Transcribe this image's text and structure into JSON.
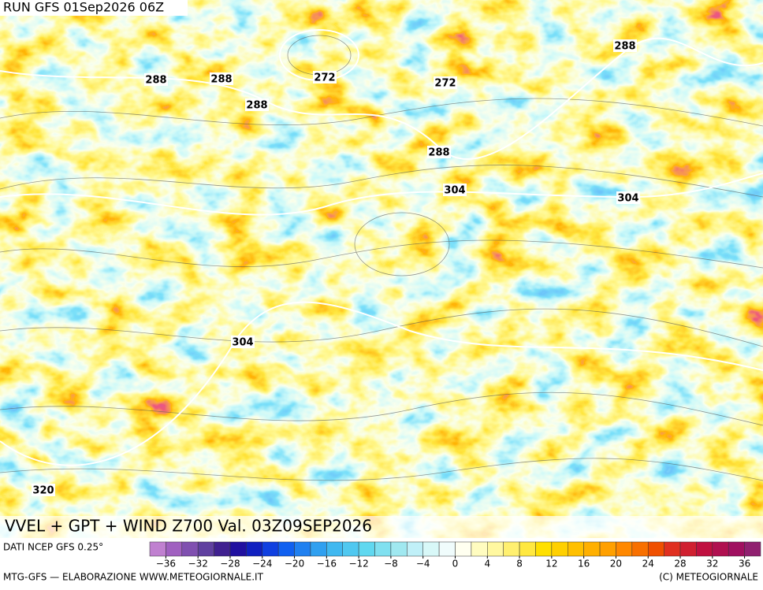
{
  "header": {
    "run": "RUN GFS 01Sep2026 06Z"
  },
  "map": {
    "title": "VVEL + GPT + WIND Z700 Val. 03Z09SEP2026",
    "contour_labels": [
      288,
      288,
      288,
      272,
      272,
      288,
      304,
      288,
      304,
      304,
      320
    ]
  },
  "footer": {
    "source": "DATI NCEP GFS 0.25°",
    "credit_left": "MTG-GFS — ELABORAZIONE WWW.METEOGIORNALE.IT",
    "credit_right": "(C) METEOGIORNALE"
  },
  "colorbar": {
    "range": [
      -38,
      38
    ],
    "colors": [
      "#c080d0",
      "#a060c0",
      "#8050b0",
      "#6040a0",
      "#402090",
      "#2010a0",
      "#1020c0",
      "#1040e0",
      "#1060f0",
      "#2080f0",
      "#30a0f0",
      "#40b8f0",
      "#50c8f0",
      "#60d8f0",
      "#80e0f0",
      "#a0e8f0",
      "#c0f0f8",
      "#d8f8f8",
      "#f0fcfc",
      "#fffff0",
      "#fffcc0",
      "#fff8a0",
      "#fff070",
      "#ffe840",
      "#ffe000",
      "#ffd000",
      "#ffc000",
      "#ffb000",
      "#ffa000",
      "#ff8800",
      "#f87000",
      "#f05000",
      "#e03020",
      "#d02030",
      "#c01040",
      "#b01050",
      "#a01060",
      "#902070"
    ],
    "ticks": [
      {
        "value": -36,
        "label": "−36"
      },
      {
        "value": -32,
        "label": "−32"
      },
      {
        "value": -28,
        "label": "−28"
      },
      {
        "value": -24,
        "label": "−24"
      },
      {
        "value": -20,
        "label": "−20"
      },
      {
        "value": -16,
        "label": "−16"
      },
      {
        "value": -12,
        "label": "−12"
      },
      {
        "value": -8,
        "label": "−8"
      },
      {
        "value": -4,
        "label": "−4"
      },
      0,
      4,
      8,
      12,
      16,
      20,
      24,
      28,
      32,
      36
    ]
  }
}
